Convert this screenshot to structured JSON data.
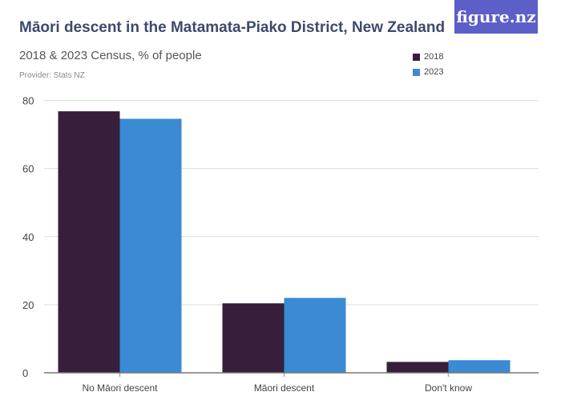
{
  "title": "Māori descent in the Matamata-Piako District, New Zealand",
  "subtitle": "2018 & 2023 Census, % of people",
  "provider": "Provider: Stats NZ",
  "logo": "figure.nz",
  "chart_data": {
    "type": "bar",
    "categories": [
      "No Māori descent",
      "Māori descent",
      "Don't know"
    ],
    "series": [
      {
        "name": "2018",
        "color": "#371f3b",
        "values": [
          76.8,
          20.4,
          3.2
        ]
      },
      {
        "name": "2023",
        "color": "#3a8ad4",
        "values": [
          74.6,
          22.0,
          3.7
        ]
      }
    ],
    "yticks": [
      "0",
      "20",
      "40",
      "60",
      "80"
    ],
    "ylim": [
      0,
      80
    ],
    "grid": true,
    "legend": "top-right"
  }
}
